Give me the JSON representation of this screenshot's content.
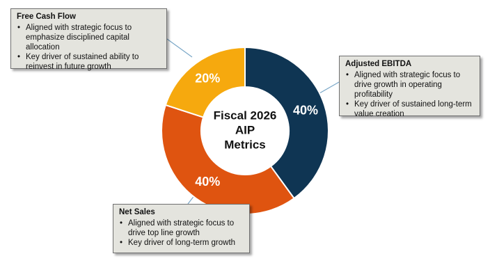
{
  "chart_data": {
    "type": "pie",
    "variant": "donut",
    "center_label_lines": [
      "Fiscal 2026",
      "AIP",
      "Metrics"
    ],
    "slices": [
      {
        "name": "Adjusted EBITDA",
        "value": 40,
        "label": "40%",
        "color": "#0f3553"
      },
      {
        "name": "Net Sales",
        "value": 40,
        "label": "40%",
        "color": "#df5410"
      },
      {
        "name": "Free Cash Flow",
        "value": 20,
        "label": "20%",
        "color": "#f6a90e"
      }
    ]
  },
  "callouts": {
    "free_cash_flow": {
      "title": "Free Cash Flow",
      "bullets": [
        "Aligned with strategic focus to emphasize disciplined capital allocation",
        "Key driver of sustained ability to reinvest in future growth"
      ]
    },
    "adjusted_ebitda": {
      "title": "Adjusted EBITDA",
      "bullets": [
        "Aligned with strategic focus to drive growth in operating profitability",
        "Key driver of sustained long-term value creation"
      ]
    },
    "net_sales": {
      "title": "Net Sales",
      "bullets": [
        "Aligned with strategic focus to drive top line growth",
        "Key driver of long-term growth"
      ]
    }
  },
  "colors": {
    "callout_background": "#e4e4de",
    "connector_line": "#7aa7c7"
  }
}
